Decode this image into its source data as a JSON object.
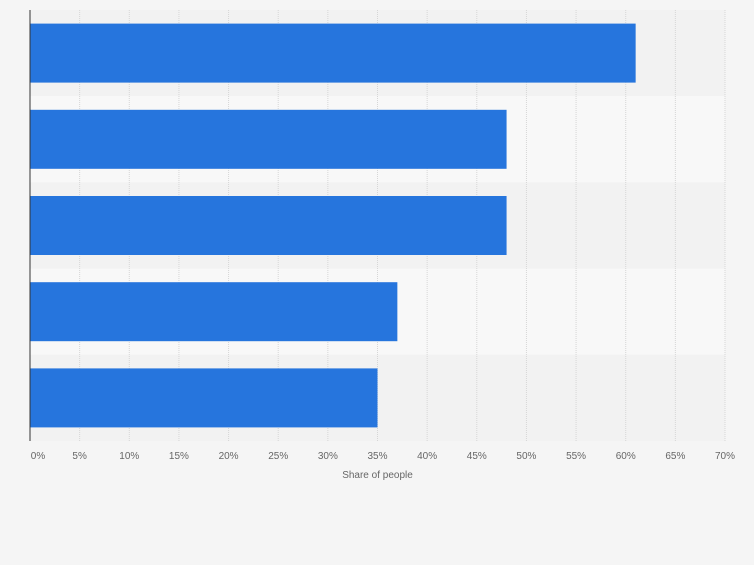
{
  "colors": {
    "background": "#f5f5f5",
    "band_dark": "#f2f2f2",
    "band_light": "#f8f8f8",
    "bar": "#2675dd",
    "grid": "#d6d6d6",
    "axis": "#333333",
    "tick_text": "#666666"
  },
  "chart_data": {
    "type": "bar",
    "orientation": "horizontal",
    "categories": [
      "",
      "",
      "",
      "",
      ""
    ],
    "values": [
      61,
      48,
      48,
      37,
      35
    ],
    "xlabel": "Share of people",
    "ylabel": "",
    "xlim": [
      0,
      70
    ],
    "tick_values": [
      0,
      5,
      10,
      15,
      20,
      25,
      30,
      35,
      40,
      45,
      50,
      55,
      60,
      65,
      70
    ],
    "tick_labels": [
      "0%",
      "5%",
      "10%",
      "15%",
      "20%",
      "25%",
      "30%",
      "35%",
      "40%",
      "45%",
      "50%",
      "55%",
      "60%",
      "65%",
      "70%"
    ],
    "grid": true,
    "legend": "none"
  }
}
